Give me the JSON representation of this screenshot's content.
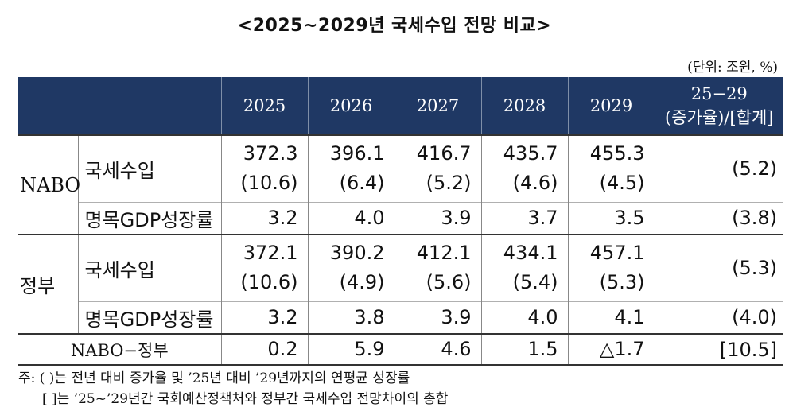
{
  "title": "<2025~2029년 국세수입 전망 비교>",
  "unit": "(단위: 조원, %)",
  "header": {
    "years": [
      "2025",
      "2026",
      "2027",
      "2028",
      "2029"
    ],
    "last_line1": "25−29",
    "last_line2": "(증가율)/[합계]"
  },
  "nabo": {
    "group": "NABO",
    "revenue_label": "국세수입",
    "revenue_values": [
      "372.3",
      "396.1",
      "416.7",
      "435.7",
      "455.3"
    ],
    "revenue_growth": [
      "(10.6)",
      "(6.4)",
      "(5.2)",
      "(4.6)",
      "(4.5)"
    ],
    "revenue_total": "(5.2)",
    "gdp_label": "명목GDP성장률",
    "gdp_values": [
      "3.2",
      "4.0",
      "3.9",
      "3.7",
      "3.5"
    ],
    "gdp_total": "(3.8)"
  },
  "gov": {
    "group": "정부",
    "revenue_label": "국세수입",
    "revenue_values": [
      "372.1",
      "390.2",
      "412.1",
      "434.1",
      "457.1"
    ],
    "revenue_growth": [
      "(10.6)",
      "(4.9)",
      "(5.6)",
      "(5.4)",
      "(5.3)"
    ],
    "revenue_total": "(5.3)",
    "gdp_label": "명목GDP성장률",
    "gdp_values": [
      "3.2",
      "3.8",
      "3.9",
      "4.0",
      "4.1"
    ],
    "gdp_total": "(4.0)"
  },
  "diff": {
    "label": "NABO−정부",
    "values": [
      "0.2",
      "5.9",
      "4.6",
      "1.5",
      "△1.7"
    ],
    "total": "[10.5]"
  },
  "notes": [
    "주: (   )는 전년 대비 증가율 및 ’25년 대비 ’29년까지의 연평균 성장률",
    "[    ]는 ’25~’29년간 국회예산정책처와 정부간 국세수입 전망차이의 총합"
  ]
}
